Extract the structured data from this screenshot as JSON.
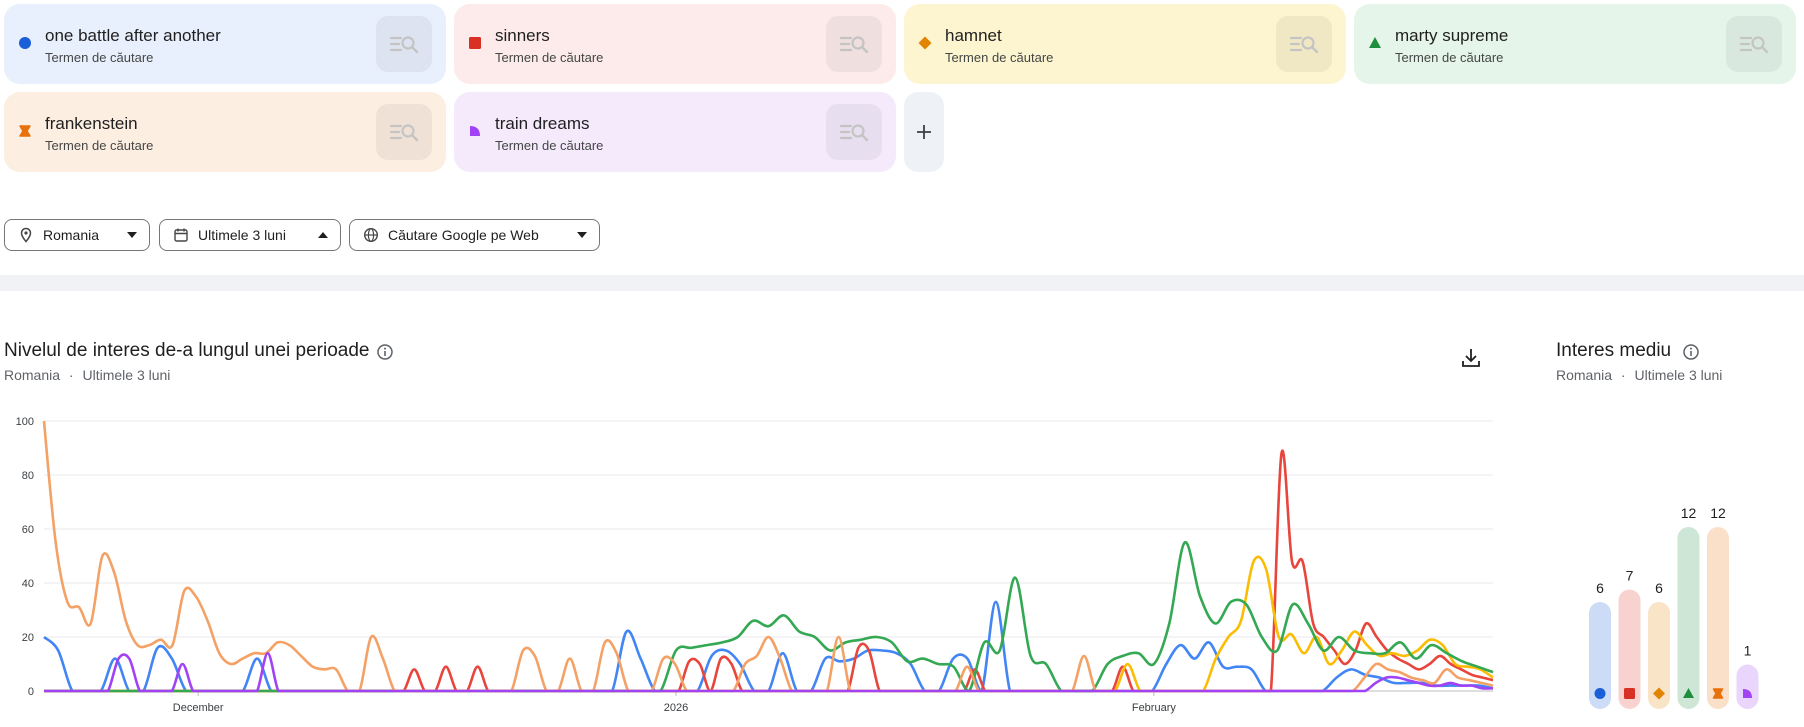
{
  "terms": [
    {
      "name": "one battle after another",
      "sub": "Termen de căutare",
      "color": "#1a5fd8",
      "bg": "#e9f0fd",
      "shape": "circle"
    },
    {
      "name": "sinners",
      "sub": "Termen de căutare",
      "color": "#d93025",
      "bg": "#fcebea",
      "shape": "square"
    },
    {
      "name": "hamnet",
      "sub": "Termen de căutare",
      "color": "#e38400",
      "bg": "#fdf5cf",
      "shape": "diamond"
    },
    {
      "name": "marty supreme",
      "sub": "Termen de căutare",
      "color": "#1e8e3e",
      "bg": "#e5f5ea",
      "shape": "triangle"
    },
    {
      "name": "frankenstein",
      "sub": "Termen de căutare",
      "color": "#e8710a",
      "bg": "#fdeee2",
      "shape": "hourglass"
    },
    {
      "name": "train dreams",
      "sub": "Termen de căutare",
      "color": "#a142f4",
      "bg": "#f4eafc",
      "shape": "quarter"
    }
  ],
  "filters": {
    "location": "Romania",
    "period": "Ultimele 3 luni",
    "source": "Căutare Google pe Web"
  },
  "chart_header": {
    "title": "Nivelul de interes de-a lungul unei perioade",
    "sub_location": "Romania",
    "sub_sep": "·",
    "sub_period": "Ultimele 3 luni"
  },
  "avg_header": {
    "title": "Interes mediu",
    "sub_location": "Romania",
    "sub_sep": "·",
    "sub_period": "Ultimele 3 luni"
  },
  "icons": {
    "search_compare": "search-list-icon",
    "add": "plus-icon",
    "location": "location-pin-icon",
    "calendar": "calendar-icon",
    "globe": "globe-icon",
    "info": "info-icon",
    "download": "download-icon"
  },
  "add_label": "+",
  "chart_data": [
    {
      "type": "line",
      "x_start": "2025-11-21",
      "x_end": "2026-02-23",
      "x_ticks": [
        {
          "date": "2025-12-01",
          "label": "December"
        },
        {
          "date": "2026-01-01",
          "label": "2026"
        },
        {
          "date": "2026-02-01",
          "label": "February"
        }
      ],
      "y_ticks": [
        0,
        20,
        40,
        60,
        80,
        100
      ],
      "ylim": [
        0,
        100
      ],
      "grid": true,
      "series": [
        {
          "name": "one battle after another",
          "color": "#4285f4",
          "values": [
            20,
            15,
            0,
            0,
            0,
            12,
            0,
            0,
            16,
            12,
            0,
            0,
            0,
            0,
            0,
            12,
            0,
            0,
            0,
            0,
            0,
            0,
            0,
            0,
            0,
            0,
            0,
            0,
            0,
            0,
            0,
            0,
            0,
            0,
            0,
            0,
            0,
            0,
            0,
            0,
            0,
            22,
            12,
            0,
            0,
            0,
            0,
            13,
            15,
            10,
            0,
            0,
            14,
            0,
            0,
            12,
            11,
            12,
            15,
            15,
            14,
            10,
            0,
            0,
            12,
            12,
            0,
            33,
            0,
            0,
            0,
            0,
            0,
            0,
            0,
            0,
            0,
            0,
            0,
            10,
            17,
            12,
            18,
            9,
            9,
            8,
            0,
            0,
            0,
            0,
            0,
            5,
            8,
            6,
            5,
            3,
            3,
            3,
            2,
            2,
            2,
            2,
            1
          ]
        },
        {
          "name": "sinners",
          "color": "#e8453c",
          "values": [
            0,
            0,
            0,
            0,
            0,
            0,
            0,
            0,
            0,
            0,
            0,
            0,
            0,
            0,
            0,
            0,
            0,
            0,
            0,
            0,
            0,
            0,
            0,
            0,
            0,
            0,
            0,
            0,
            0,
            0,
            0,
            0,
            0,
            0,
            0,
            8,
            0,
            0,
            9,
            0,
            0,
            9,
            0,
            0,
            0,
            0,
            0,
            0,
            0,
            0,
            0,
            0,
            0,
            0,
            0,
            0,
            0,
            0,
            0,
            0,
            0,
            11,
            10,
            0,
            12,
            10,
            0,
            0,
            0,
            0,
            0,
            0,
            0,
            0,
            0,
            0,
            0,
            16,
            15,
            0,
            0,
            0,
            0,
            0,
            0,
            0,
            0,
            0,
            8,
            0,
            0,
            0,
            0,
            0,
            0,
            0,
            0,
            0,
            0,
            0,
            0,
            0,
            9,
            0,
            0,
            0,
            0,
            0,
            0,
            0,
            0,
            0,
            0,
            0,
            0,
            0,
            0,
            88,
            48,
            48,
            25,
            20,
            15,
            10,
            15,
            25,
            20,
            15,
            12,
            10,
            8,
            10,
            13,
            10,
            8,
            6,
            5,
            4
          ]
        },
        {
          "name": "hamnet",
          "color": "#fbbc04",
          "values": [
            0,
            0,
            0,
            0,
            0,
            0,
            0,
            0,
            0,
            0,
            0,
            0,
            0,
            0,
            0,
            0,
            0,
            0,
            0,
            0,
            0,
            0,
            0,
            0,
            0,
            0,
            0,
            0,
            0,
            0,
            0,
            0,
            0,
            0,
            0,
            0,
            0,
            0,
            0,
            0,
            0,
            0,
            0,
            0,
            0,
            0,
            0,
            0,
            0,
            0,
            0,
            0,
            0,
            0,
            0,
            0,
            0,
            0,
            0,
            0,
            0,
            0,
            0,
            0,
            0,
            0,
            0,
            0,
            0,
            0,
            0,
            0,
            0,
            0,
            0,
            0,
            0,
            0,
            0,
            0,
            0,
            0,
            0,
            0,
            0,
            0,
            10,
            0,
            0,
            0,
            0,
            0,
            0,
            12,
            20,
            26,
            48,
            45,
            20,
            21,
            14,
            20,
            10,
            15,
            22,
            17,
            13,
            14,
            13,
            15,
            19,
            17,
            10,
            9,
            8,
            5
          ]
        },
        {
          "name": "marty supreme",
          "color": "#34a853",
          "values": [
            0,
            0,
            0,
            0,
            0,
            0,
            0,
            0,
            0,
            0,
            0,
            0,
            0,
            0,
            0,
            0,
            0,
            0,
            0,
            0,
            0,
            0,
            0,
            0,
            0,
            0,
            0,
            0,
            0,
            0,
            0,
            0,
            0,
            0,
            0,
            0,
            0,
            0,
            0,
            0,
            0,
            15,
            16,
            17,
            18,
            20,
            26,
            24,
            28,
            22,
            20,
            15,
            18,
            19,
            20,
            18,
            11,
            12,
            10,
            9,
            0,
            18,
            15,
            42,
            13,
            10,
            0,
            0,
            0,
            10,
            13,
            14,
            10,
            25,
            55,
            35,
            25,
            33,
            32,
            20,
            15,
            32,
            25,
            15,
            20,
            15,
            14,
            14,
            18,
            12,
            17,
            14,
            11,
            9,
            7
          ]
        },
        {
          "name": "frankenstein",
          "color": "#f4a166",
          "values": [
            100,
            55,
            33,
            31,
            25,
            50,
            44,
            26,
            17,
            17,
            19,
            17,
            37,
            35,
            26,
            14,
            10,
            12,
            14,
            14,
            18,
            17,
            13,
            9,
            8,
            8,
            0,
            0,
            20,
            12,
            0,
            0,
            0,
            0,
            0,
            0,
            0,
            0,
            0,
            0,
            0,
            15,
            13,
            0,
            0,
            12,
            0,
            0,
            18,
            14,
            0,
            0,
            0,
            12,
            10,
            0,
            0,
            0,
            0,
            0,
            10,
            13,
            20,
            12,
            0,
            0,
            0,
            0,
            20,
            0,
            0,
            0,
            0,
            0,
            0,
            0,
            0,
            0,
            0,
            9,
            0,
            0,
            0,
            0,
            0,
            0,
            0,
            0,
            0,
            13,
            0,
            0,
            0,
            0,
            0,
            0,
            0,
            0,
            0,
            0,
            0,
            0,
            0,
            0,
            0,
            0,
            0,
            0,
            0,
            0,
            0,
            0,
            0,
            5,
            10,
            8,
            7,
            5,
            4,
            3,
            8,
            5,
            4,
            3,
            2
          ]
        },
        {
          "name": "train dreams",
          "color": "#a142f4",
          "values": [
            0,
            0,
            0,
            0,
            0,
            0,
            0,
            12,
            12,
            0,
            0,
            0,
            0,
            10,
            0,
            0,
            0,
            0,
            0,
            0,
            0,
            14,
            0,
            0,
            0,
            0,
            0,
            0,
            0,
            0,
            0,
            0,
            0,
            0,
            0,
            0,
            0,
            0,
            0,
            0,
            0,
            0,
            0,
            0,
            0,
            0,
            0,
            0,
            0,
            0,
            0,
            0,
            0,
            0,
            0,
            0,
            0,
            0,
            0,
            0,
            0,
            0,
            0,
            0,
            0,
            0,
            0,
            0,
            0,
            0,
            0,
            0,
            0,
            0,
            0,
            0,
            0,
            0,
            0,
            0,
            0,
            0,
            0,
            0,
            0,
            0,
            0,
            0,
            0,
            0,
            0,
            0,
            0,
            0,
            0,
            0,
            0,
            0,
            0,
            0,
            0,
            0,
            0,
            0,
            0,
            0,
            0,
            0,
            0,
            0,
            0,
            0,
            0,
            0,
            0,
            0,
            0,
            0,
            0,
            0,
            0,
            0,
            0,
            0,
            0,
            3,
            5,
            5,
            4,
            3,
            2,
            2,
            3,
            2,
            2,
            1,
            1
          ]
        }
      ]
    },
    {
      "type": "bar",
      "categories": [
        "one battle after another",
        "sinners",
        "hamnet",
        "marty supreme",
        "frankenstein",
        "train dreams"
      ],
      "values": [
        6,
        7,
        6,
        12,
        12,
        1
      ],
      "ymax": 12
    }
  ]
}
